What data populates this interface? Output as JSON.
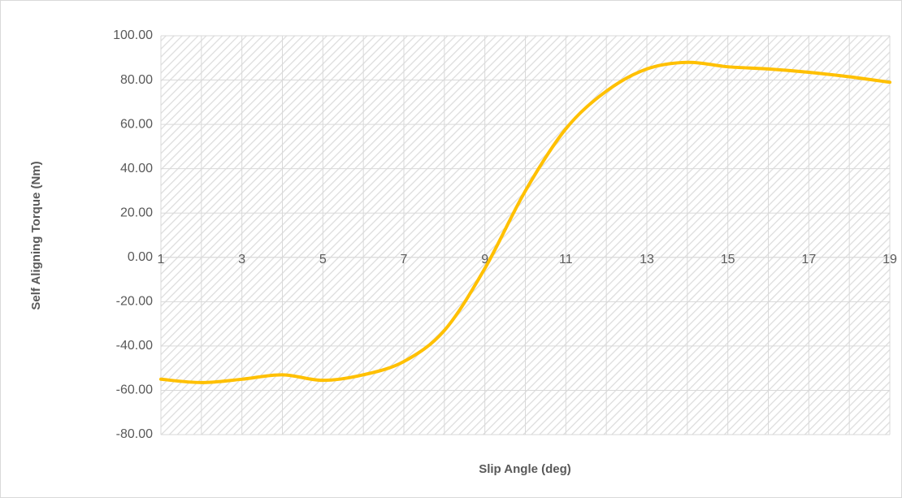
{
  "chart_data": {
    "type": "line",
    "x_label": "Slip Angle (deg)",
    "y_label": "Self Aligning Torque (Nm)",
    "categories": [
      "1",
      null,
      "3",
      null,
      "5",
      null,
      "7",
      null,
      "9",
      null,
      "11",
      null,
      "13",
      null,
      "15",
      null,
      "17",
      null,
      "19"
    ],
    "series": [
      {
        "name": "Self Aligning Torque",
        "color": "#ffc000",
        "values": [
          -55,
          -56.5,
          -55,
          -53,
          -55.5,
          -53,
          -47,
          -33,
          -5,
          30,
          58,
          75,
          85,
          88,
          86,
          85,
          83.5,
          81.5,
          79
        ]
      }
    ],
    "ylim": [
      -80,
      100
    ],
    "yticks": [
      {
        "value": -80,
        "label": "-80.00"
      },
      {
        "value": -60,
        "label": "-60.00"
      },
      {
        "value": -40,
        "label": "-40.00"
      },
      {
        "value": -20,
        "label": "-20.00"
      },
      {
        "value": 0,
        "label": "0.00"
      },
      {
        "value": 20,
        "label": "20.00"
      },
      {
        "value": 40,
        "label": "40.00"
      },
      {
        "value": 60,
        "label": "60.00"
      },
      {
        "value": 80,
        "label": "80.00"
      },
      {
        "value": 100,
        "label": "100.00"
      }
    ],
    "grid": true,
    "smooth": true
  }
}
